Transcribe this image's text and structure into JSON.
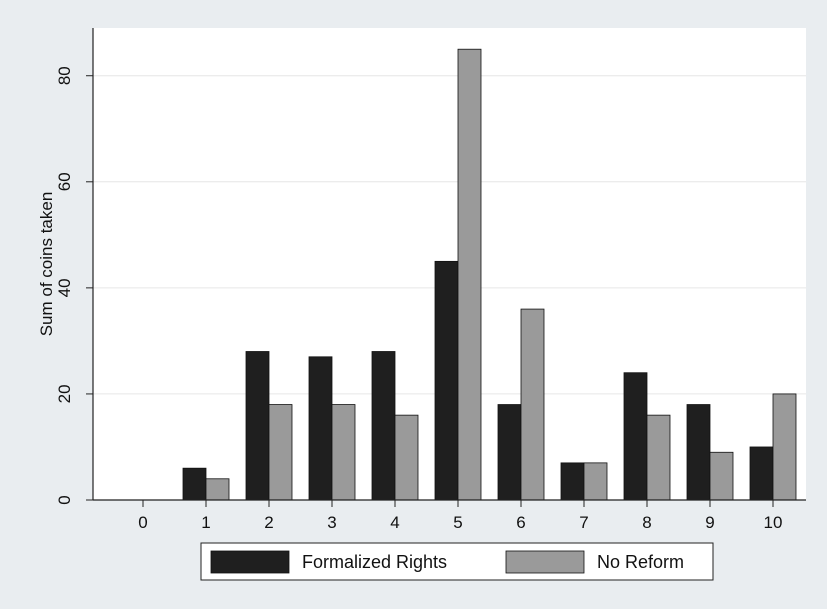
{
  "chart_data": {
    "type": "bar",
    "ylabel": "Sum of coins taken",
    "xlabel": "",
    "categories": [
      "0",
      "1",
      "2",
      "3",
      "4",
      "5",
      "6",
      "7",
      "8",
      "9",
      "10"
    ],
    "series": [
      {
        "name": "Formalized Rights",
        "color": "#1f1f1f",
        "values": [
          0,
          6,
          28,
          27,
          28,
          45,
          18,
          7,
          24,
          18,
          10
        ]
      },
      {
        "name": "No Reform",
        "color": "#9a9a9a",
        "values": [
          0,
          4,
          18,
          18,
          16,
          85,
          36,
          7,
          16,
          9,
          20
        ]
      }
    ],
    "yticks": [
      "0",
      "20",
      "40",
      "60",
      "80"
    ],
    "ylim": [
      0,
      89
    ],
    "grid": true,
    "legend_position": "bottom"
  }
}
